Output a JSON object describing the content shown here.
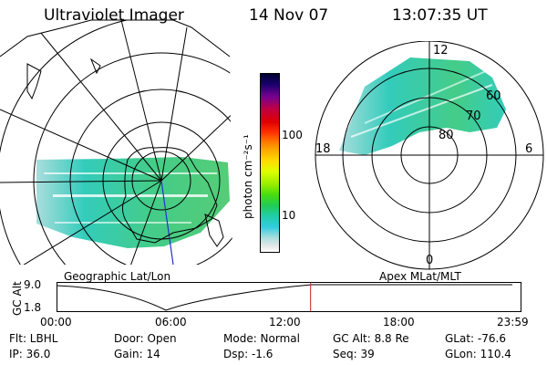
{
  "header": {
    "instrument": "Ultraviolet Imager",
    "date": "14 Nov 07",
    "time": "13:07:35 UT"
  },
  "geo_panel": {
    "label": "Geographic Lat/Lon"
  },
  "apex_panel": {
    "label": "Apex MLat/MLT",
    "mlt_labels": {
      "top": "12",
      "left": "18",
      "right": "6",
      "bottom": "0"
    },
    "mlat_labels": [
      "60",
      "70",
      "80"
    ]
  },
  "colorbar": {
    "unit_label": "photon cm⁻²s⁻¹",
    "ticks": [
      "100",
      "10"
    ],
    "colors": [
      "#000030",
      "#1a0070",
      "#7a0090",
      "#c00040",
      "#e00000",
      "#ff3300",
      "#ff7700",
      "#ffaa00",
      "#ffdd00",
      "#ddff00",
      "#99ee00",
      "#44dd11",
      "#22cc55",
      "#22ccaa",
      "#33ccdd",
      "#aadddd",
      "#e8e8e8",
      "#ffffff"
    ]
  },
  "orbit_plot": {
    "ylabel": "GC Alt",
    "y_ticks": [
      "9.0",
      "1.8"
    ],
    "x_ticks": [
      "00:00",
      "06:00",
      "12:00",
      "18:00",
      "23:59"
    ],
    "current_time_fraction": 0.5466,
    "marker_color": "#cc2222"
  },
  "info": {
    "flt": "Flt: LBHL",
    "door": "Door: Open",
    "mode": "Mode: Normal",
    "gc_alt": "GC Alt: 8.8 Re",
    "glat": "GLat: -76.6",
    "ip": "IP: 36.0",
    "gain": "Gain: 14",
    "dsp": "Dsp:    -1.6",
    "seq": "Seq: 39",
    "glon": "GLon: 110.4"
  }
}
